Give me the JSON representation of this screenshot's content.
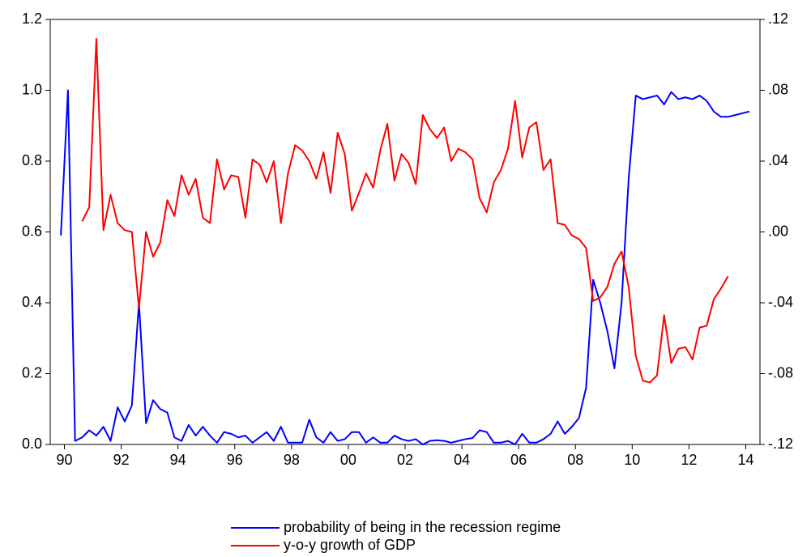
{
  "chart_data": {
    "type": "line",
    "x": [
      1990.375,
      1990.625,
      1990.875,
      1991.125,
      1991.375,
      1991.625,
      1991.875,
      1992.125,
      1992.375,
      1992.625,
      1992.875,
      1993.125,
      1993.375,
      1993.625,
      1993.875,
      1994.125,
      1994.375,
      1994.625,
      1994.875,
      1995.125,
      1995.375,
      1995.625,
      1995.875,
      1996.125,
      1996.375,
      1996.625,
      1996.875,
      1997.125,
      1997.375,
      1997.625,
      1997.875,
      1998.125,
      1998.375,
      1998.625,
      1998.875,
      1999.125,
      1999.375,
      1999.625,
      1999.875,
      2000.125,
      2000.375,
      2000.625,
      2000.875,
      2001.125,
      2001.375,
      2001.625,
      2001.875,
      2002.125,
      2002.375,
      2002.625,
      2002.875,
      2003.125,
      2003.375,
      2003.625,
      2003.875,
      2004.125,
      2004.375,
      2004.625,
      2004.875,
      2005.125,
      2005.375,
      2005.625,
      2005.875,
      2006.125,
      2006.375,
      2006.625,
      2006.875,
      2007.125,
      2007.375,
      2007.625,
      2007.875,
      2008.125,
      2008.375,
      2008.625,
      2008.875,
      2009.125,
      2009.375,
      2009.625,
      2009.875,
      2010.125,
      2010.375,
      2010.625,
      2010.875,
      2011.125,
      2011.375,
      2011.625,
      2011.875,
      2012.125,
      2012.375,
      2012.625,
      2012.875,
      2013.125,
      2013.375,
      2013.625,
      2013.875,
      2014.125,
      2014.375,
      2014.625
    ],
    "series": [
      {
        "name": "probability of being in the recession regime",
        "color": "#0000ff",
        "values": [
          0.59,
          1.0,
          0.01,
          0.02,
          0.04,
          0.025,
          0.05,
          0.01,
          0.105,
          0.065,
          0.11,
          0.4,
          0.06,
          0.125,
          0.1,
          0.09,
          0.02,
          0.01,
          0.055,
          0.025,
          0.05,
          0.025,
          0.005,
          0.035,
          0.03,
          0.02,
          0.025,
          0.005,
          0.02,
          0.035,
          0.01,
          0.05,
          0.005,
          0.005,
          0.005,
          0.07,
          0.02,
          0.005,
          0.035,
          0.01,
          0.015,
          0.035,
          0.035,
          0.005,
          0.02,
          0.005,
          0.005,
          0.025,
          0.015,
          0.01,
          0.015,
          0.0,
          0.01,
          0.012,
          0.01,
          0.005,
          0.01,
          0.015,
          0.018,
          0.04,
          0.035,
          0.005,
          0.005,
          0.01,
          0.0,
          0.03,
          0.005,
          0.005,
          0.015,
          0.03,
          0.065,
          0.03,
          0.05,
          0.075,
          0.16,
          0.465,
          0.4,
          0.32,
          0.215,
          0.4,
          0.75,
          0.985,
          0.975,
          0.98,
          0.985,
          0.96,
          0.995,
          0.975,
          0.98,
          0.975,
          0.985,
          0.97,
          0.94,
          0.925,
          0.925,
          0.93,
          0.935,
          0.94
        ]
      },
      {
        "name": "y-o-y growth of GDP",
        "color": "#ff0000",
        "axis": "y2",
        "values": [
          null,
          null,
          null,
          0.006,
          0.014,
          0.109,
          0.001,
          0.021,
          0.005,
          0.001,
          0.0,
          -0.043,
          0.0,
          -0.014,
          -0.006,
          0.018,
          0.009,
          0.032,
          0.021,
          0.03,
          0.008,
          0.005,
          0.041,
          0.024,
          0.032,
          0.031,
          0.008,
          0.041,
          0.038,
          0.028,
          0.04,
          0.005,
          0.033,
          0.049,
          0.046,
          0.04,
          0.03,
          0.045,
          0.022,
          0.056,
          0.044,
          0.012,
          0.022,
          0.033,
          0.025,
          0.046,
          0.061,
          0.029,
          0.044,
          0.039,
          0.027,
          0.066,
          0.058,
          0.053,
          0.059,
          0.04,
          0.047,
          0.045,
          0.041,
          0.019,
          0.011,
          0.028,
          0.035,
          0.047,
          0.074,
          0.042,
          0.059,
          0.062,
          0.035,
          0.041,
          0.005,
          0.004,
          -0.002,
          -0.004,
          -0.009,
          -0.039,
          -0.037,
          -0.031,
          -0.018,
          -0.011,
          -0.031,
          -0.07,
          -0.084,
          -0.085,
          -0.081,
          -0.047,
          -0.074,
          -0.066,
          -0.065,
          -0.072,
          -0.054,
          -0.053,
          -0.038,
          -0.032,
          -0.025,
          null,
          null,
          null
        ]
      }
    ],
    "xlim": [
      1990,
      2015
    ],
    "xticks": [
      {
        "value": 1990.5,
        "label": "90"
      },
      {
        "value": 1992.5,
        "label": "92"
      },
      {
        "value": 1994.5,
        "label": "94"
      },
      {
        "value": 1996.5,
        "label": "96"
      },
      {
        "value": 1998.5,
        "label": "98"
      },
      {
        "value": 2000.5,
        "label": "00"
      },
      {
        "value": 2002.5,
        "label": "02"
      },
      {
        "value": 2004.5,
        "label": "04"
      },
      {
        "value": 2006.5,
        "label": "06"
      },
      {
        "value": 2008.5,
        "label": "08"
      },
      {
        "value": 2010.5,
        "label": "10"
      },
      {
        "value": 2012.5,
        "label": "12"
      },
      {
        "value": 2014.5,
        "label": "14"
      }
    ],
    "ylim": [
      0,
      1.2
    ],
    "yticks": [
      {
        "value": 0,
        "label": "0.0"
      },
      0.2,
      0.4,
      0.6,
      0.8,
      {
        "value": 1,
        "label": "1.0"
      },
      1.2
    ],
    "y2lim": [
      -0.12,
      0.12
    ],
    "y2ticks": [
      {
        "value": -0.12,
        "label": "-.12"
      },
      {
        "value": -0.08,
        "label": "-.08"
      },
      {
        "value": -0.04,
        "label": "-.04"
      },
      {
        "value": 0,
        "label": ".00"
      },
      {
        "value": 0.04,
        "label": ".04"
      },
      {
        "value": 0.08,
        "label": ".08"
      },
      {
        "value": 0.12,
        "label": ".12"
      }
    ],
    "legend": "bottom"
  }
}
